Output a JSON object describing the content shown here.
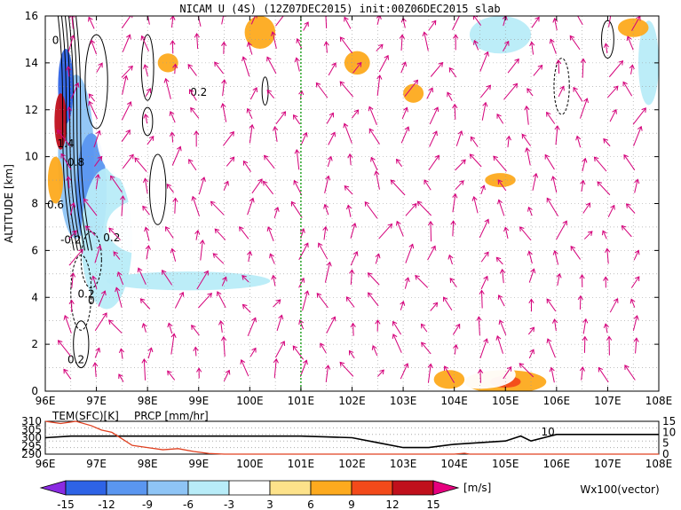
{
  "title": "NICAM U (4S) (12Z07DEC2015) init:00Z06DEC2015 slab",
  "chart_data": [
    {
      "type": "heatmap",
      "ylabel": "ALTITUDE [km]",
      "xlim": [
        96,
        108
      ],
      "ylim": [
        0,
        16
      ],
      "x_ticks": [
        "96E",
        "97E",
        "98E",
        "99E",
        "100E",
        "101E",
        "102E",
        "103E",
        "104E",
        "105E",
        "106E",
        "107E",
        "108E"
      ],
      "y_ticks": [
        "0",
        "2",
        "4",
        "6",
        "8",
        "10",
        "12",
        "14",
        "16"
      ],
      "grid": true,
      "marker_line_lon": 101,
      "contour_labels": [
        "0.2",
        "1.4",
        "0.8",
        "0.6",
        "0.2",
        "-0.2",
        "0.2",
        "0",
        "0.2",
        "0"
      ],
      "vector_legend": "Wx100(vector)",
      "colorbar": {
        "levels": [
          "-15",
          "-12",
          "-9",
          "-6",
          "-3",
          "3",
          "6",
          "9",
          "12",
          "15"
        ],
        "unit": "[m/s]",
        "colors": [
          "#8a2be2",
          "#2e63e6",
          "#5a96f0",
          "#8ec4f5",
          "#b8ecf8",
          "#ffffff",
          "#fde28a",
          "#fdaa1e",
          "#f34a1a",
          "#c0101c",
          "#e6007e"
        ]
      },
      "patches": [
        {
          "lon": 96.6,
          "alt": 10.0,
          "rlon": 0.35,
          "ralt": 3.5,
          "u": -9
        },
        {
          "lon": 96.9,
          "alt": 8.5,
          "rlon": 0.3,
          "ralt": 2.5,
          "u": -12
        },
        {
          "lon": 97.2,
          "alt": 6.5,
          "rlon": 0.5,
          "ralt": 3.0,
          "u": -6
        },
        {
          "lon": 96.4,
          "alt": 13.0,
          "rlon": 0.15,
          "ralt": 1.6,
          "u": -15
        },
        {
          "lon": 96.3,
          "alt": 11.5,
          "rlon": 0.12,
          "ralt": 1.2,
          "u": 12
        },
        {
          "lon": 96.2,
          "alt": 9.0,
          "rlon": 0.15,
          "ralt": 1.0,
          "u": 6
        },
        {
          "lon": 97.6,
          "alt": 11.0,
          "rlon": 0.6,
          "ralt": 2.0,
          "u": -3
        },
        {
          "lon": 98.0,
          "alt": 7.0,
          "rlon": 0.8,
          "ralt": 1.2,
          "u": -3
        },
        {
          "lon": 99.3,
          "alt": 5.5,
          "rlon": 1.4,
          "ralt": 0.8,
          "u": -3
        },
        {
          "lon": 98.8,
          "alt": 4.7,
          "rlon": 1.6,
          "ralt": 0.4,
          "u": -6
        },
        {
          "lon": 100.3,
          "alt": 11.2,
          "rlon": 1.2,
          "ralt": 1.4,
          "u": -3
        },
        {
          "lon": 98.9,
          "alt": 12.0,
          "rlon": 0.6,
          "ralt": 0.7,
          "u": -3
        },
        {
          "lon": 99.8,
          "alt": 15.0,
          "rlon": 0.6,
          "ralt": 1.0,
          "u": -3
        },
        {
          "lon": 100.2,
          "alt": 15.3,
          "rlon": 0.3,
          "ralt": 0.7,
          "u": 6
        },
        {
          "lon": 98.4,
          "alt": 14.0,
          "rlon": 0.2,
          "ralt": 0.4,
          "u": 6
        },
        {
          "lon": 102.0,
          "alt": 10.5,
          "rlon": 0.4,
          "ralt": 0.6,
          "u": -3
        },
        {
          "lon": 102.6,
          "alt": 13.5,
          "rlon": 0.5,
          "ralt": 0.6,
          "u": -3
        },
        {
          "lon": 103.5,
          "alt": 15.2,
          "rlon": 0.5,
          "ralt": 0.6,
          "u": -3
        },
        {
          "lon": 104.7,
          "alt": 14.2,
          "rlon": 1.2,
          "ralt": 1.8,
          "u": -3
        },
        {
          "lon": 104.9,
          "alt": 15.2,
          "rlon": 0.6,
          "ralt": 0.8,
          "u": -6
        },
        {
          "lon": 106.3,
          "alt": 15.0,
          "rlon": 0.5,
          "ralt": 1.0,
          "u": -3
        },
        {
          "lon": 107.2,
          "alt": 13.3,
          "rlon": 0.7,
          "ralt": 1.5,
          "u": -3
        },
        {
          "lon": 107.8,
          "alt": 14.0,
          "rlon": 0.2,
          "ralt": 1.8,
          "u": -6
        },
        {
          "lon": 105.8,
          "alt": 11.5,
          "rlon": 0.6,
          "ralt": 0.6,
          "u": -3
        },
        {
          "lon": 102.1,
          "alt": 14.0,
          "rlon": 0.25,
          "ralt": 0.5,
          "u": 6
        },
        {
          "lon": 103.2,
          "alt": 12.7,
          "rlon": 0.2,
          "ralt": 0.4,
          "u": 6
        },
        {
          "lon": 107.5,
          "alt": 15.5,
          "rlon": 0.3,
          "ralt": 0.4,
          "u": 6
        },
        {
          "lon": 105.0,
          "alt": 0.4,
          "rlon": 0.8,
          "ralt": 0.5,
          "u": 6
        },
        {
          "lon": 105.0,
          "alt": 0.4,
          "rlon": 0.3,
          "ralt": 0.25,
          "u": 9
        },
        {
          "lon": 104.5,
          "alt": 0.7,
          "rlon": 0.7,
          "ralt": 0.6,
          "u": -3
        },
        {
          "lon": 103.9,
          "alt": 0.5,
          "rlon": 0.3,
          "ralt": 0.4,
          "u": 6
        },
        {
          "lon": 96.6,
          "alt": 0.8,
          "rlon": 0.5,
          "ralt": 0.8,
          "u": -3
        },
        {
          "lon": 104.9,
          "alt": 9.0,
          "rlon": 0.3,
          "ralt": 0.3,
          "u": 6
        },
        {
          "lon": 102.0,
          "alt": 6.3,
          "rlon": 0.3,
          "ralt": 0.4,
          "u": -3
        },
        {
          "lon": 105.9,
          "alt": 6.0,
          "rlon": 0.5,
          "ralt": 0.8,
          "u": -3
        }
      ]
    },
    {
      "type": "line",
      "xlim": [
        96,
        108
      ],
      "series": [
        {
          "name": "TEM(SFC)[K]",
          "color": "#000000",
          "ylim": [
            290,
            310
          ],
          "points": [
            [
              96,
              300
            ],
            [
              96.5,
              301
            ],
            [
              97,
              301
            ],
            [
              98,
              301
            ],
            [
              99,
              301
            ],
            [
              100,
              301
            ],
            [
              101,
              301
            ],
            [
              101.5,
              300.5
            ],
            [
              102,
              300
            ],
            [
              102.5,
              297
            ],
            [
              103,
              294
            ],
            [
              103.5,
              294
            ],
            [
              104,
              296
            ],
            [
              104.5,
              297
            ],
            [
              105,
              298
            ],
            [
              105.3,
              301
            ],
            [
              105.5,
              298
            ],
            [
              106,
              302
            ],
            [
              106.5,
              302
            ],
            [
              108,
              302
            ]
          ]
        },
        {
          "name": "PRCP [mm/hr]",
          "color": "#e04020",
          "ylim": [
            0,
            15
          ],
          "points": [
            [
              96,
              15
            ],
            [
              96.3,
              14
            ],
            [
              96.6,
              15
            ],
            [
              96.9,
              13
            ],
            [
              97.1,
              11
            ],
            [
              97.3,
              10
            ],
            [
              97.5,
              7
            ],
            [
              97.7,
              4
            ],
            [
              98,
              3
            ],
            [
              98.3,
              2
            ],
            [
              98.6,
              2.5
            ],
            [
              98.9,
              1.2
            ],
            [
              99.2,
              0.3
            ],
            [
              99.5,
              0
            ],
            [
              104,
              0
            ],
            [
              104.2,
              0.4
            ],
            [
              104.3,
              0
            ],
            [
              108,
              0
            ]
          ]
        }
      ],
      "left_ticks": [
        "310",
        "305",
        "300",
        "295",
        "290"
      ],
      "right_ticks": [
        "15",
        "10",
        "5",
        "0"
      ],
      "value_label": "10",
      "x_ticks": [
        "96E",
        "97E",
        "98E",
        "99E",
        "100E",
        "101E",
        "102E",
        "103E",
        "104E",
        "105E",
        "106E",
        "107E",
        "108E"
      ]
    }
  ]
}
